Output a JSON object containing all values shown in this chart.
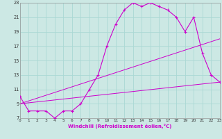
{
  "xlabel": "Windchill (Refroidissement éolien,°C)",
  "bg_color": "#cce8e4",
  "line_color": "#cc00cc",
  "grid_color": "#aad8d4",
  "xmin": 0,
  "xmax": 23,
  "ymin": 7,
  "ymax": 23,
  "yticks": [
    7,
    9,
    11,
    13,
    15,
    17,
    19,
    21,
    23
  ],
  "xticks": [
    0,
    1,
    2,
    3,
    4,
    5,
    6,
    7,
    8,
    9,
    10,
    11,
    12,
    13,
    14,
    15,
    16,
    17,
    18,
    19,
    20,
    21,
    22,
    23
  ],
  "main_x": [
    0,
    1,
    2,
    3,
    4,
    5,
    6,
    7,
    8,
    9,
    10,
    11,
    12,
    13,
    14,
    15,
    16,
    17,
    18,
    19,
    20,
    21,
    22,
    23
  ],
  "main_y": [
    10,
    8,
    8,
    8,
    7,
    8,
    8,
    9,
    11,
    13,
    17,
    20,
    22,
    23,
    22.5,
    23,
    22.5,
    22,
    21,
    19,
    21,
    16,
    13,
    12
  ],
  "line2_x": [
    0,
    23
  ],
  "line2_y": [
    9,
    12
  ],
  "line3_x": [
    0,
    23
  ],
  "line3_y": [
    9,
    18
  ]
}
